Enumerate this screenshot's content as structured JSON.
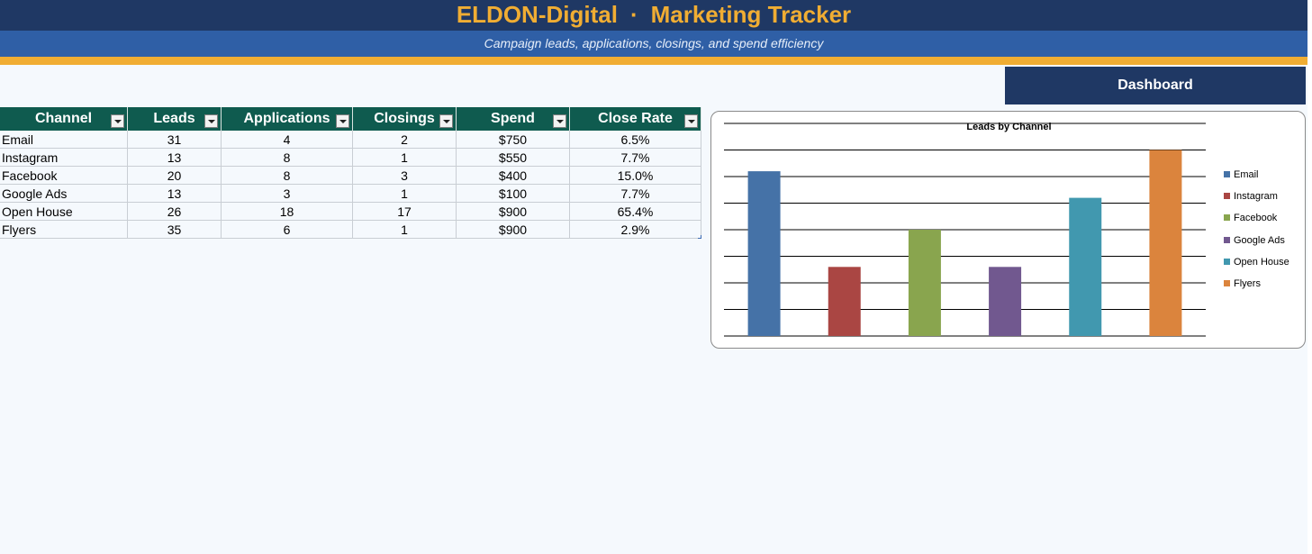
{
  "header": {
    "brand": "ELDON-Digital",
    "separator": "·",
    "app_title": "Marketing Tracker",
    "subtitle": "Campaign leads, applications, closings, and spend efficiency"
  },
  "dashboard_button": {
    "label": "Dashboard"
  },
  "table": {
    "columns": [
      "Channel",
      "Leads",
      "Applications",
      "Closings",
      "Spend",
      "Close Rate"
    ],
    "rows": [
      [
        "Email",
        "31",
        "4",
        "2",
        "$750",
        "6.5%"
      ],
      [
        "Instagram",
        "13",
        "8",
        "1",
        "$550",
        "7.7%"
      ],
      [
        "Facebook",
        "20",
        "8",
        "3",
        "$400",
        "15.0%"
      ],
      [
        "Google Ads",
        "13",
        "3",
        "1",
        "$100",
        "7.7%"
      ],
      [
        "Open House",
        "26",
        "18",
        "17",
        "$900",
        "65.4%"
      ],
      [
        "Flyers",
        "35",
        "6",
        "1",
        "$900",
        "2.9%"
      ]
    ]
  },
  "colors": {
    "header_bg": "#1f3864",
    "title_text": "#f0ad33",
    "subtitle_bg": "#2f5fa6",
    "table_header_bg": "#0f5b4f"
  },
  "chart_data": {
    "type": "bar",
    "title": "Leads by Channel",
    "categories": [
      "Email",
      "Instagram",
      "Facebook",
      "Google Ads",
      "Open House",
      "Flyers"
    ],
    "values": [
      31,
      13,
      20,
      13,
      26,
      35
    ],
    "colors": [
      "#4572a7",
      "#aa4643",
      "#89a54e",
      "#71588f",
      "#4198af",
      "#db843d"
    ],
    "ylim": [
      0,
      40
    ],
    "grid": true,
    "legend": "right"
  }
}
